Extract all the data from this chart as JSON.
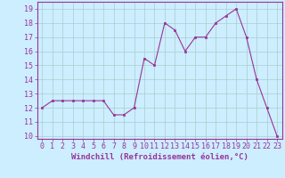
{
  "x": [
    0,
    1,
    2,
    3,
    4,
    5,
    6,
    7,
    8,
    9,
    10,
    11,
    12,
    13,
    14,
    15,
    16,
    17,
    18,
    19,
    20,
    21,
    22,
    23
  ],
  "y": [
    12,
    12.5,
    12.5,
    12.5,
    12.5,
    12.5,
    12.5,
    11.5,
    11.5,
    12,
    15.5,
    15,
    18,
    17.5,
    16,
    17,
    17,
    18,
    18.5,
    19,
    17,
    14,
    12,
    10
  ],
  "line_color": "#993399",
  "marker_color": "#993399",
  "bg_color": "#cceeff",
  "grid_color": "#aacccc",
  "xlabel": "Windchill (Refroidissement éolien,°C)",
  "xlim": [
    -0.5,
    23.5
  ],
  "ylim": [
    9.8,
    19.5
  ],
  "yticks": [
    10,
    11,
    12,
    13,
    14,
    15,
    16,
    17,
    18,
    19
  ],
  "xticks": [
    0,
    1,
    2,
    3,
    4,
    5,
    6,
    7,
    8,
    9,
    10,
    11,
    12,
    13,
    14,
    15,
    16,
    17,
    18,
    19,
    20,
    21,
    22,
    23
  ],
  "xlabel_fontsize": 6.5,
  "tick_fontsize": 6,
  "line_width": 0.8,
  "marker_size": 2.0
}
